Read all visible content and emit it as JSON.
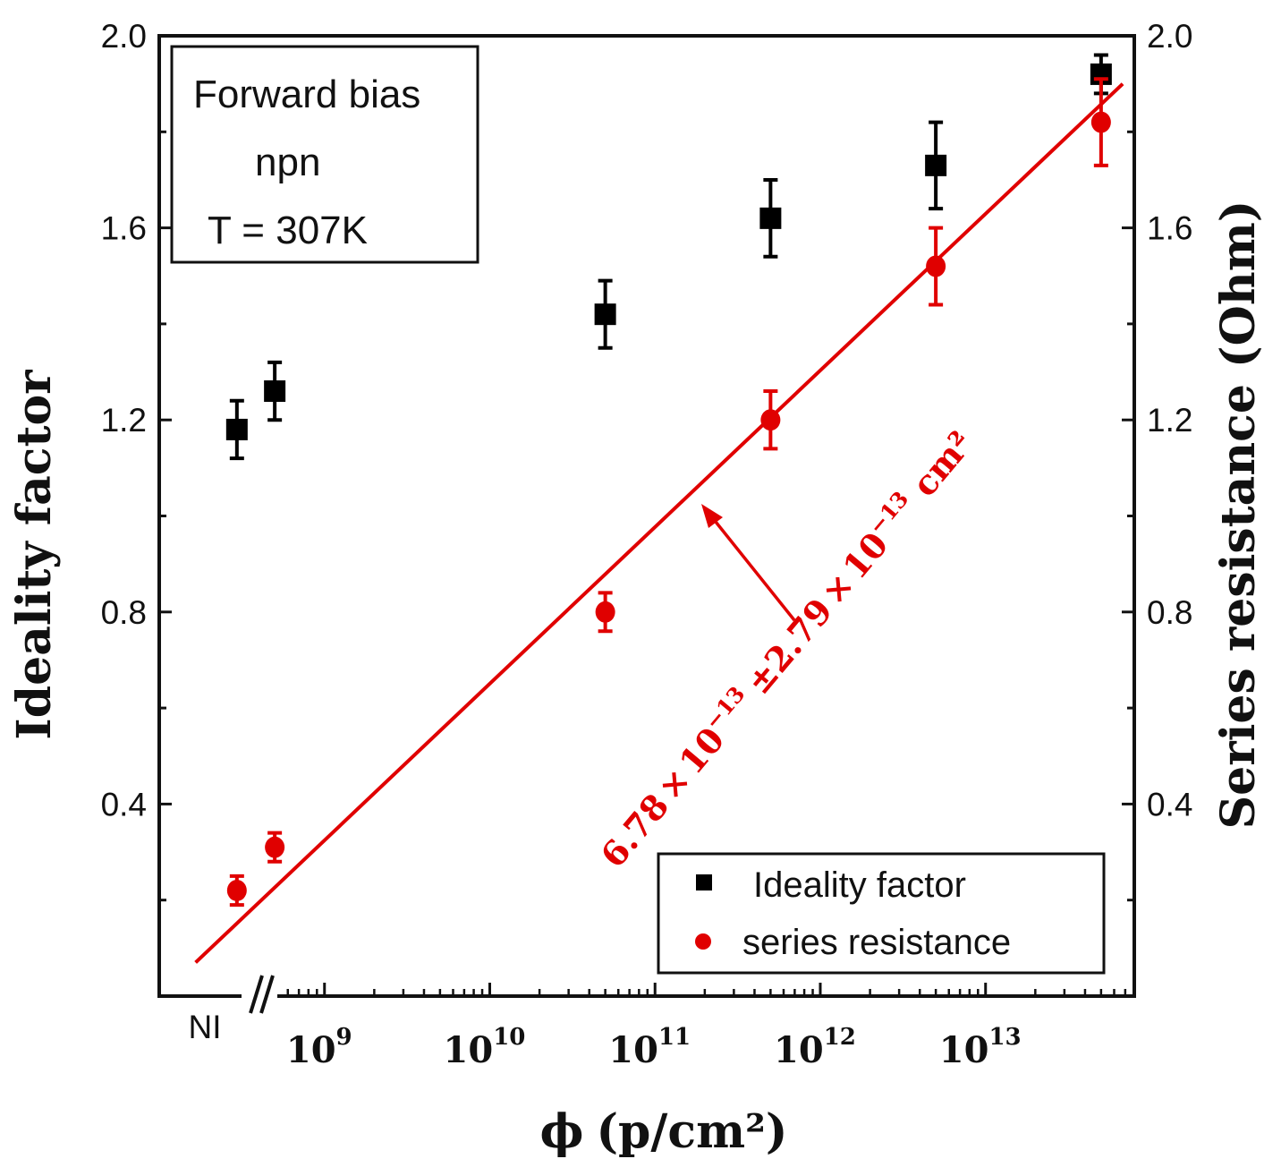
{
  "chart_data": {
    "type": "scatter",
    "xscale": "log",
    "x_tick_labels": [
      {
        "base": "10",
        "exp": "9",
        "value": 1000000000.0
      },
      {
        "base": "10",
        "exp": "10",
        "value": 10000000000.0
      },
      {
        "base": "10",
        "exp": "11",
        "value": 100000000000.0
      },
      {
        "base": "10",
        "exp": "12",
        "value": 1000000000000.0
      },
      {
        "base": "10",
        "exp": "13",
        "value": 10000000000000.0
      }
    ],
    "x_break_label": "NI",
    "xlim_log10": [
      8.0,
      13.9
    ],
    "xlabel_main": "ϕ",
    "xlabel_unit": "(p/cm²)",
    "ylabel_left": "Ideality factor",
    "ylabel_right": "Series resistance (Ohm)",
    "ylim": [
      0.0,
      2.0
    ],
    "y_tick_labels": [
      "0.4",
      "0.8",
      "1.2",
      "1.6",
      "2.0"
    ],
    "y_tick_values": [
      0.4,
      0.8,
      1.2,
      1.6,
      2.0
    ],
    "y_minor_ticks": [
      0.2,
      0.6,
      1.0,
      1.4,
      1.8
    ],
    "info_box": [
      "Forward bias",
      "npn",
      "T = 307K"
    ],
    "legend": [
      "Ideality factor",
      "series resistance"
    ],
    "annotation": {
      "coef": "6.78",
      "exp1": "−13",
      "pm": "±",
      "err": "2.79",
      "exp2": "−13",
      "unit": "cm²",
      "times": "×",
      "ten": "10"
    },
    "series": [
      {
        "name": "Ideality factor",
        "color": "#000000",
        "marker": "square",
        "points": [
          {
            "x": "NI",
            "y": 1.18,
            "err": 0.06
          },
          {
            "x": 500000000.0,
            "y": 1.26,
            "err": 0.06
          },
          {
            "x": 50000000000.0,
            "y": 1.42,
            "err": 0.07
          },
          {
            "x": 500000000000.0,
            "y": 1.62,
            "err": 0.08
          },
          {
            "x": 5000000000000.0,
            "y": 1.73,
            "err": 0.09
          },
          {
            "x": 50000000000000.0,
            "y": 1.92,
            "err": 0.04
          }
        ]
      },
      {
        "name": "series resistance",
        "color": "#e00000",
        "marker": "circle",
        "points": [
          {
            "x": "NI",
            "y": 0.22,
            "err": 0.03
          },
          {
            "x": 500000000.0,
            "y": 0.31,
            "err": 0.03
          },
          {
            "x": 50000000000.0,
            "y": 0.8,
            "err": 0.04
          },
          {
            "x": 500000000000.0,
            "y": 1.2,
            "err": 0.06
          },
          {
            "x": 5000000000000.0,
            "y": 1.52,
            "err": 0.08
          },
          {
            "x": 50000000000000.0,
            "y": 1.82,
            "err": 0.09
          }
        ]
      }
    ],
    "fit_line": {
      "color": "#e00000",
      "x_start_log10": 8.22,
      "y_start": 0.07,
      "x_end_log10": 13.83,
      "y_end": 1.9
    }
  }
}
